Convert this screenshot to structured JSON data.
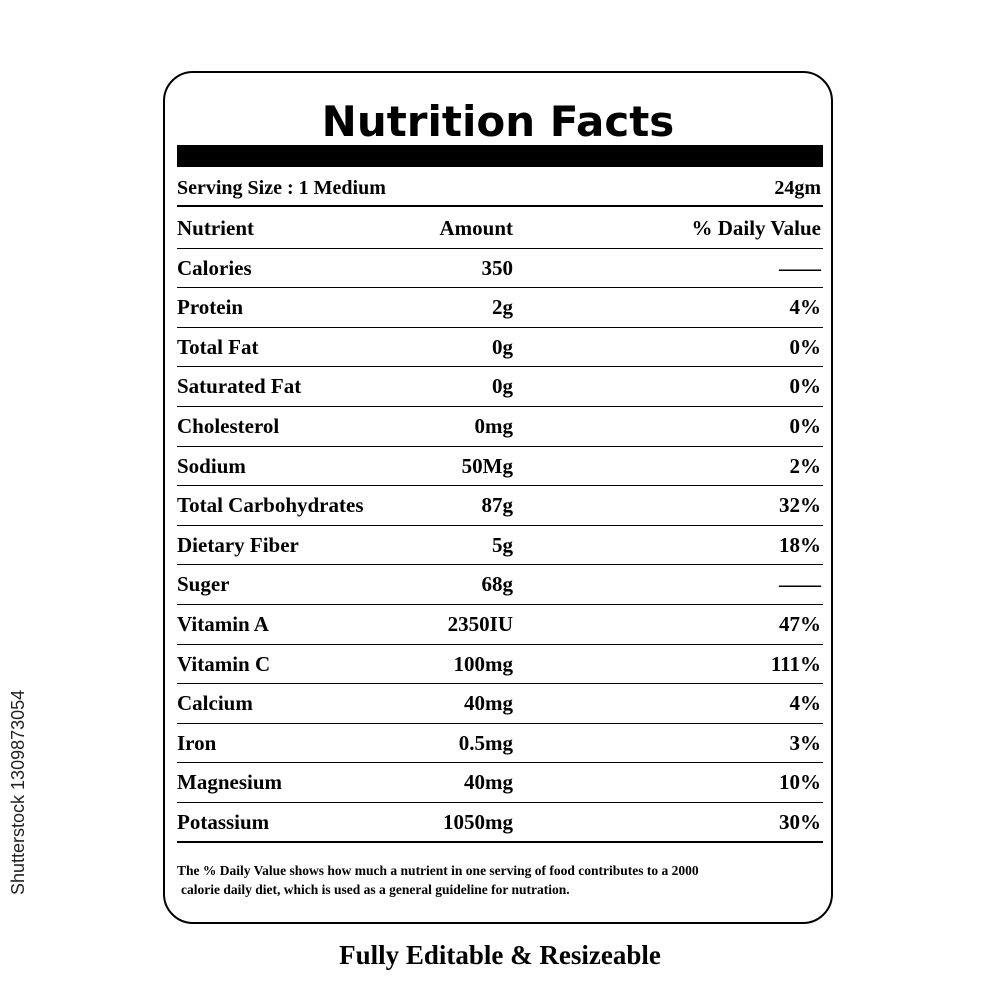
{
  "side_id": "Shutterstock 1309873054",
  "label": {
    "title": "Nutrition Facts",
    "serving_size": "Serving Size : 1 Medium",
    "serving_weight": "24gm",
    "headers": {
      "nutrient": "Nutrient",
      "amount": "Amount",
      "daily_value": "% Daily Value"
    },
    "rows": [
      {
        "nutrient": "Calories",
        "amount": "350",
        "dv": "——"
      },
      {
        "nutrient": "Protein",
        "amount": "2g",
        "dv": "4%"
      },
      {
        "nutrient": "Total Fat",
        "amount": "0g",
        "dv": "0%"
      },
      {
        "nutrient": "Saturated Fat",
        "amount": "0g",
        "dv": "0%"
      },
      {
        "nutrient": "Cholesterol",
        "amount": "0mg",
        "dv": "0%"
      },
      {
        "nutrient": "Sodium",
        "amount": "50Mg",
        "dv": "2%"
      },
      {
        "nutrient": "Total Carbohydrates",
        "amount": "87g",
        "dv": "32%"
      },
      {
        "nutrient": "Dietary Fiber",
        "amount": "5g",
        "dv": "18%"
      },
      {
        "nutrient": "Suger",
        "amount": "68g",
        "dv": "——"
      },
      {
        "nutrient": "Vitamin A",
        "amount": "2350IU",
        "dv": "47%"
      },
      {
        "nutrient": "Vitamin C",
        "amount": "100mg",
        "dv": "111%"
      },
      {
        "nutrient": "Calcium",
        "amount": "40mg",
        "dv": "4%"
      },
      {
        "nutrient": "Iron",
        "amount": "0.5mg",
        "dv": "3%"
      },
      {
        "nutrient": "Magnesium",
        "amount": "40mg",
        "dv": "10%"
      },
      {
        "nutrient": "Potassium",
        "amount": "1050mg",
        "dv": "30%"
      }
    ],
    "footnote_line1": "The % Daily Value shows how much a nutrient in one serving of food contributes to a 2000",
    "footnote_line2": "calorie daily diet, which is used as a general guideline for nutration."
  },
  "caption": "Fully Editable & Resizeable"
}
